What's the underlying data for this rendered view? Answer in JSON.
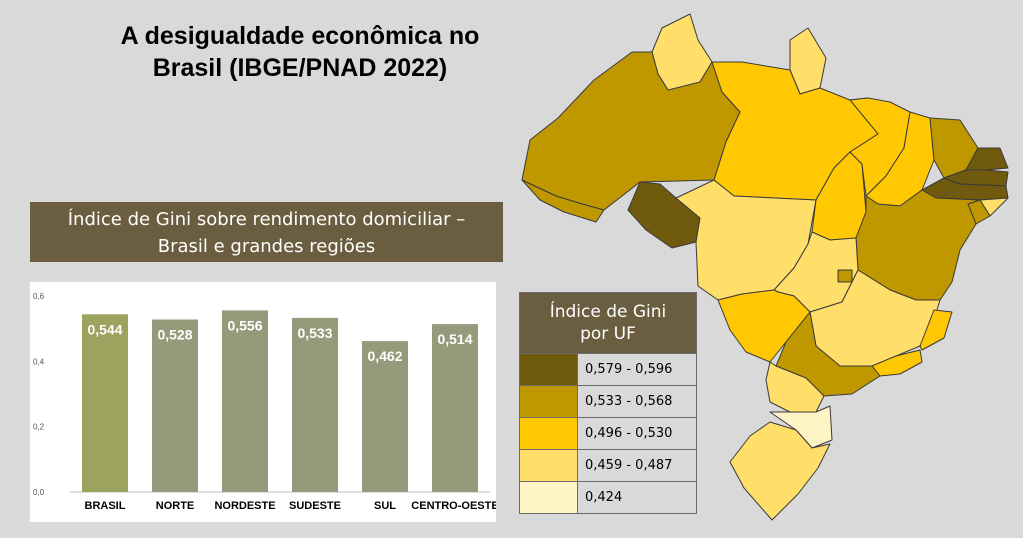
{
  "header": {
    "title_line1": "A desigualdade econômica no",
    "title_line2": "Brasil (IBGE/PNAD 2022)"
  },
  "chart_title": {
    "line1": "Índice de Gini sobre rendimento domiciliar –",
    "line2": "Brasil e grandes regiões"
  },
  "chart_data": {
    "type": "bar",
    "categories": [
      "BRASIL",
      "NORTE",
      "NORDESTE",
      "SUDESTE",
      "SUL",
      "CENTRO-OESTE"
    ],
    "values": [
      0.544,
      0.528,
      0.556,
      0.533,
      0.462,
      0.514
    ],
    "value_labels": [
      "0,544",
      "0,528",
      "0,556",
      "0,533",
      "0,462",
      "0,514"
    ],
    "bar_colors": [
      "#9ca35e",
      "#959b7a",
      "#959b7a",
      "#959b7a",
      "#959b7a",
      "#959b7a"
    ],
    "y_ticks": [
      0,
      0.2,
      0.4,
      0.6
    ],
    "y_tick_labels": [
      "0,0",
      "0,2",
      "0,4",
      "0,6"
    ],
    "ylim": [
      0,
      0.6
    ],
    "grid": false
  },
  "legend": {
    "title_line1": "Índice de Gini",
    "title_line2": "por UF",
    "items": [
      {
        "label": "0,579 - 0,596",
        "color": "#6f5a0d"
      },
      {
        "label": "0,533 - 0,568",
        "color": "#bf9800"
      },
      {
        "label": "0,496 - 0,530",
        "color": "#ffc802"
      },
      {
        "label": "0,459 - 0,487",
        "color": "#ffdf6a"
      },
      {
        "label": "0,424",
        "color": "#fff4c5"
      }
    ]
  }
}
